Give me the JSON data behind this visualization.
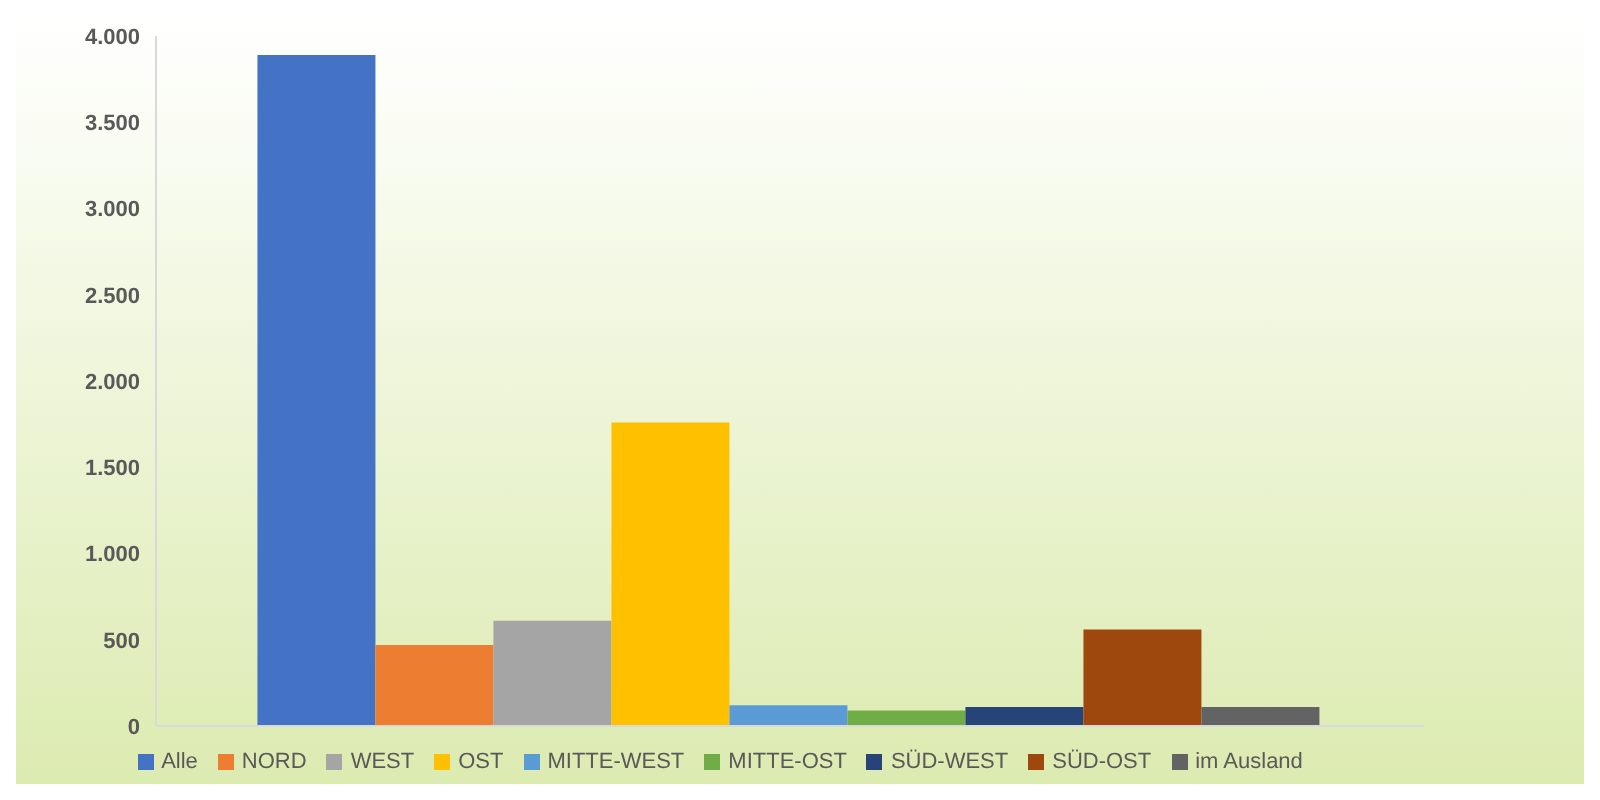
{
  "chart_data": {
    "type": "bar",
    "categories": [
      null
    ],
    "series": [
      {
        "name": "Alle",
        "color": "#4472c4",
        "values": [
          3890
        ]
      },
      {
        "name": "NORD",
        "color": "#ed7d31",
        "values": [
          470
        ]
      },
      {
        "name": "WEST",
        "color": "#a5a5a5",
        "values": [
          610
        ]
      },
      {
        "name": "OST",
        "color": "#ffc000",
        "values": [
          1760
        ]
      },
      {
        "name": "MITTE-WEST",
        "color": "#5b9bd5",
        "values": [
          120
        ]
      },
      {
        "name": "MITTE-OST",
        "color": "#70ad47",
        "values": [
          90
        ]
      },
      {
        "name": "SÜD-WEST",
        "color": "#264478",
        "values": [
          110
        ]
      },
      {
        "name": "SÜD-OST",
        "color": "#9e480e",
        "values": [
          560
        ]
      },
      {
        "name": "im Ausland",
        "color": "#636363",
        "values": [
          110
        ]
      }
    ],
    "ylim": [
      0,
      4000
    ],
    "yticks": [
      0,
      500,
      {
        "value": 1000,
        "label": "1.000"
      },
      {
        "value": 1500,
        "label": "1.500"
      },
      {
        "value": 2000,
        "label": "2.000"
      },
      {
        "value": 2500,
        "label": "2.500"
      },
      {
        "value": 3000,
        "label": "3.000"
      },
      {
        "value": 3500,
        "label": "3.500"
      },
      {
        "value": 4000,
        "label": "4.000"
      }
    ],
    "legend": "bottom"
  }
}
